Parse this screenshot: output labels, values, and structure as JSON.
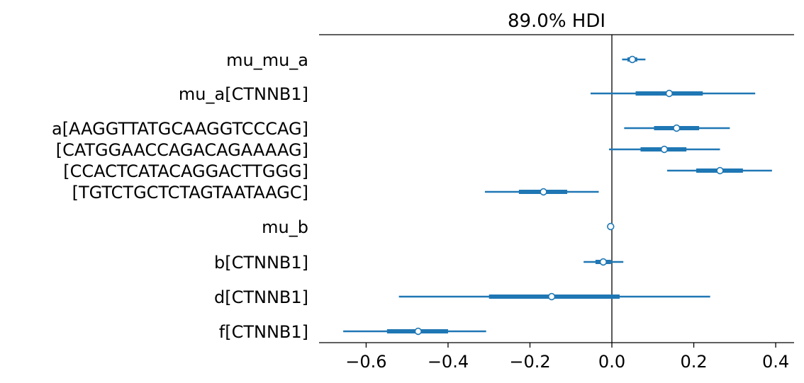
{
  "chart_data": {
    "type": "forest",
    "title": "89.0% HDI",
    "xlabel": "",
    "ylabel": "",
    "xlim": [
      -0.715,
      0.4449
    ],
    "xticks": [
      -0.6,
      -0.4,
      -0.2,
      0.0,
      0.2,
      0.4
    ],
    "xtick_labels": [
      "−0.6",
      "−0.4",
      "−0.2",
      "0.0",
      "0.2",
      "0.4"
    ],
    "reference_line": 0.0,
    "color": "#1f77b4",
    "rows": [
      {
        "label": "mu_mu_a",
        "mean": 0.05,
        "hdi_low": 0.025,
        "hdi_high": 0.082,
        "iqr_low": 0.038,
        "iqr_high": 0.062
      },
      {
        "label": "mu_a[CTNNB1]",
        "mean": 0.14,
        "hdi_low": -0.052,
        "hdi_high": 0.35,
        "iqr_low": 0.058,
        "iqr_high": 0.222
      },
      {
        "label": "a[AAGGTTATGCAAGGTCCCAG]",
        "mean": 0.158,
        "hdi_low": 0.03,
        "hdi_high": 0.288,
        "iqr_low": 0.103,
        "iqr_high": 0.213
      },
      {
        "label": "[CATGGAACCAGACAGAAAAG]",
        "mean": 0.128,
        "hdi_low": -0.007,
        "hdi_high": 0.264,
        "iqr_low": 0.07,
        "iqr_high": 0.182
      },
      {
        "label": "[CCACTCATACAGGACTTGGG]",
        "mean": 0.264,
        "hdi_low": 0.135,
        "hdi_high": 0.391,
        "iqr_low": 0.206,
        "iqr_high": 0.32
      },
      {
        "label": "[TGTCTGCTCTAGTAATAAGC]",
        "mean": -0.167,
        "hdi_low": -0.31,
        "hdi_high": -0.032,
        "iqr_low": -0.227,
        "iqr_high": -0.109
      },
      {
        "label": "mu_b",
        "mean": -0.003,
        "hdi_low": -0.006,
        "hdi_high": 0.0,
        "iqr_low": -0.004,
        "iqr_high": -0.002
      },
      {
        "label": "b[CTNNB1]",
        "mean": -0.021,
        "hdi_low": -0.069,
        "hdi_high": 0.028,
        "iqr_low": -0.04,
        "iqr_high": -0.002
      },
      {
        "label": "d[CTNNB1]",
        "mean": -0.147,
        "hdi_low": -0.52,
        "hdi_high": 0.24,
        "iqr_low": -0.3,
        "iqr_high": 0.019
      },
      {
        "label": "f[CTNNB1]",
        "mean": -0.473,
        "hdi_low": -0.656,
        "hdi_high": -0.307,
        "iqr_low": -0.549,
        "iqr_high": -0.4
      }
    ]
  }
}
